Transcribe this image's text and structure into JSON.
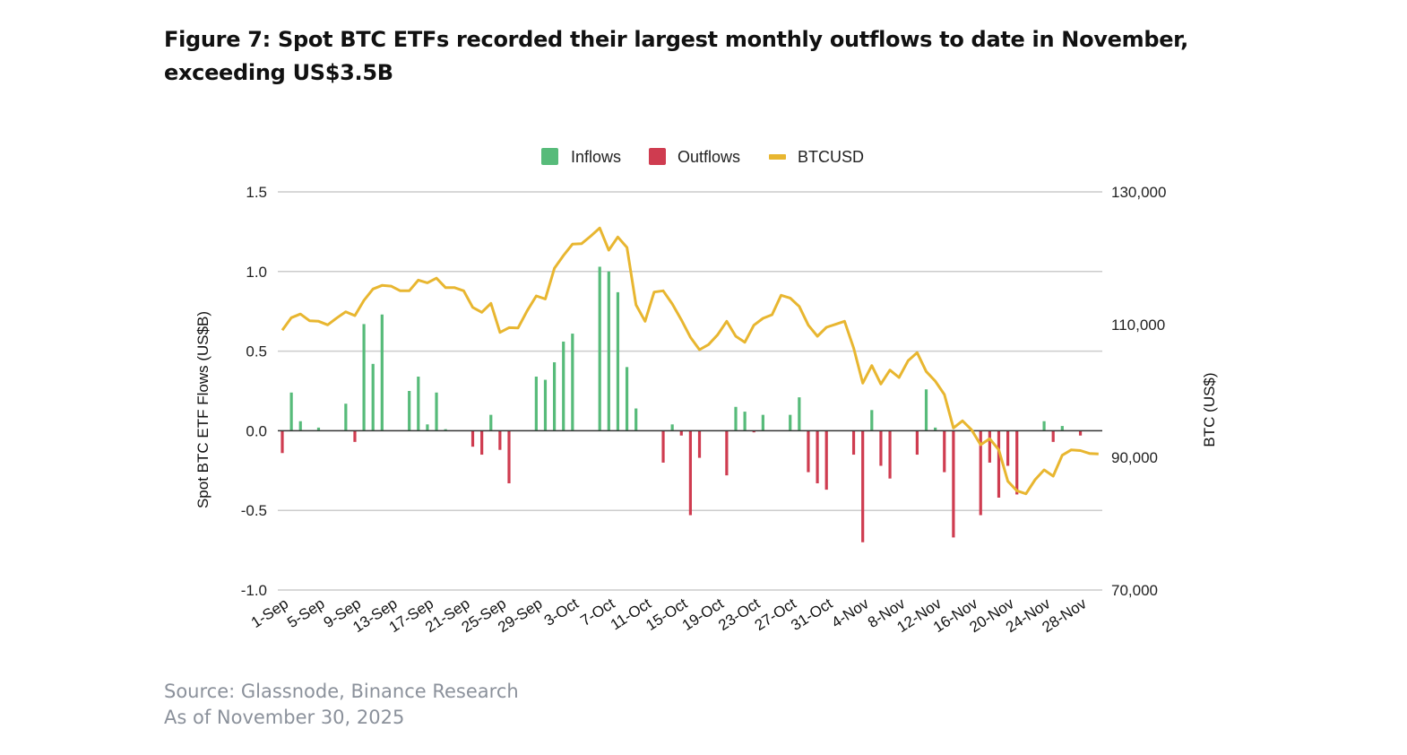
{
  "title": "Figure 7: Spot BTC ETFs recorded their largest monthly outflows to date in November, exceeding US$3.5B",
  "source": "Source: Glassnode, Binance Research",
  "as_of": "As of November 30, 2025",
  "colors": {
    "inflows": "#57bb7a",
    "outflows": "#cf3c50",
    "btcusd": "#e8b630",
    "grid": "#cccccc",
    "zero": "#333333"
  },
  "chart_data": {
    "type": "bar+line",
    "legend": [
      "Inflows",
      "Outflows",
      "BTCUSD"
    ],
    "legend_position": "top-center",
    "ylabel": "Spot BTC ETF Flows (US$B)",
    "y2label": "BTC (US$)",
    "ylim": [
      -1.0,
      1.5
    ],
    "y2lim": [
      70000,
      130000
    ],
    "yticks": [
      "1.5",
      "1.0",
      "0.5",
      "0.0",
      "-0.5",
      "-1.0"
    ],
    "ytick_values": [
      1.5,
      1.0,
      0.5,
      0.0,
      -0.5,
      -1.0
    ],
    "y2ticks": [
      "130,000",
      "110,000",
      "90,000",
      "70,000"
    ],
    "y2tick_values": [
      130000,
      110000,
      90000,
      70000
    ],
    "grid": true,
    "xticks": [
      "1-Sep",
      "5-Sep",
      "9-Sep",
      "13-Sep",
      "17-Sep",
      "21-Sep",
      "25-Sep",
      "29-Sep",
      "3-Oct",
      "7-Oct",
      "11-Oct",
      "15-Oct",
      "19-Oct",
      "23-Oct",
      "27-Oct",
      "31-Oct",
      "4-Nov",
      "8-Nov",
      "12-Nov",
      "16-Nov",
      "20-Nov",
      "24-Nov",
      "28-Nov"
    ],
    "start_date": "1-Sep",
    "flows": [
      [
        "1-Sep",
        -0.14
      ],
      [
        "2-Sep",
        0.24
      ],
      [
        "3-Sep",
        0.06
      ],
      [
        "5-Sep",
        0.02
      ],
      [
        "8-Sep",
        0.17
      ],
      [
        "9-Sep",
        -0.07
      ],
      [
        "10-Sep",
        0.67
      ],
      [
        "11-Sep",
        0.42
      ],
      [
        "12-Sep",
        0.73
      ],
      [
        "15-Sep",
        0.25
      ],
      [
        "16-Sep",
        0.34
      ],
      [
        "17-Sep",
        0.04
      ],
      [
        "18-Sep",
        0.24
      ],
      [
        "19-Sep",
        0.01
      ],
      [
        "22-Sep",
        -0.1
      ],
      [
        "23-Sep",
        -0.15
      ],
      [
        "24-Sep",
        0.1
      ],
      [
        "25-Sep",
        -0.12
      ],
      [
        "26-Sep",
        -0.33
      ],
      [
        "29-Sep",
        0.34
      ],
      [
        "30-Sep",
        0.32
      ],
      [
        "1-Oct",
        0.43
      ],
      [
        "2-Oct",
        0.56
      ],
      [
        "3-Oct",
        0.61
      ],
      [
        "6-Oct",
        1.03
      ],
      [
        "7-Oct",
        1.0
      ],
      [
        "8-Oct",
        0.87
      ],
      [
        "9-Oct",
        0.4
      ],
      [
        "10-Oct",
        0.14
      ],
      [
        "13-Oct",
        -0.2
      ],
      [
        "14-Oct",
        0.04
      ],
      [
        "15-Oct",
        -0.03
      ],
      [
        "16-Oct",
        -0.53
      ],
      [
        "17-Oct",
        -0.17
      ],
      [
        "20-Oct",
        -0.28
      ],
      [
        "21-Oct",
        0.15
      ],
      [
        "22-Oct",
        0.12
      ],
      [
        "23-Oct",
        -0.01
      ],
      [
        "24-Oct",
        0.1
      ],
      [
        "27-Oct",
        0.1
      ],
      [
        "28-Oct",
        0.21
      ],
      [
        "29-Oct",
        -0.26
      ],
      [
        "30-Oct",
        -0.33
      ],
      [
        "31-Oct",
        -0.37
      ],
      [
        "3-Nov",
        -0.15
      ],
      [
        "4-Nov",
        -0.7
      ],
      [
        "5-Nov",
        0.13
      ],
      [
        "6-Nov",
        -0.22
      ],
      [
        "7-Nov",
        -0.3
      ],
      [
        "10-Nov",
        -0.15
      ],
      [
        "11-Nov",
        0.26
      ],
      [
        "12-Nov",
        0.02
      ],
      [
        "13-Nov",
        -0.26
      ],
      [
        "14-Nov",
        -0.67
      ],
      [
        "17-Nov",
        -0.53
      ],
      [
        "18-Nov",
        -0.2
      ],
      [
        "19-Nov",
        -0.42
      ],
      [
        "20-Nov",
        -0.22
      ],
      [
        "21-Nov",
        -0.4
      ],
      [
        "24-Nov",
        0.06
      ],
      [
        "25-Nov",
        -0.07
      ],
      [
        "26-Nov",
        0.03
      ],
      [
        "28-Nov",
        -0.03
      ]
    ],
    "btcusd": [
      109150,
      111040,
      111600,
      110580,
      110500,
      109960,
      110990,
      111930,
      111350,
      113650,
      115360,
      115900,
      115800,
      115100,
      115100,
      116700,
      116300,
      117000,
      115570,
      115570,
      115100,
      112600,
      111850,
      113200,
      108820,
      109540,
      109500,
      112070,
      114320,
      113870,
      118470,
      120400,
      122120,
      122200,
      123330,
      124550,
      121220,
      123200,
      121620,
      112970,
      110500,
      114900,
      115100,
      113110,
      110720,
      108100,
      106220,
      106990,
      108470,
      110500,
      108240,
      107340,
      109900,
      110950,
      111490,
      114420,
      114000,
      112740,
      109900,
      108240,
      109590,
      110040,
      110500,
      106450,
      101180,
      103830,
      101040,
      103150,
      102030,
      104550,
      105770,
      102930,
      101490,
      99460,
      94420,
      95500,
      94150,
      91890,
      92800,
      91120,
      86390,
      84960,
      84500,
      86620,
      88110,
      87160,
      90310,
      91120,
      91020,
      90580,
      90500
    ]
  }
}
